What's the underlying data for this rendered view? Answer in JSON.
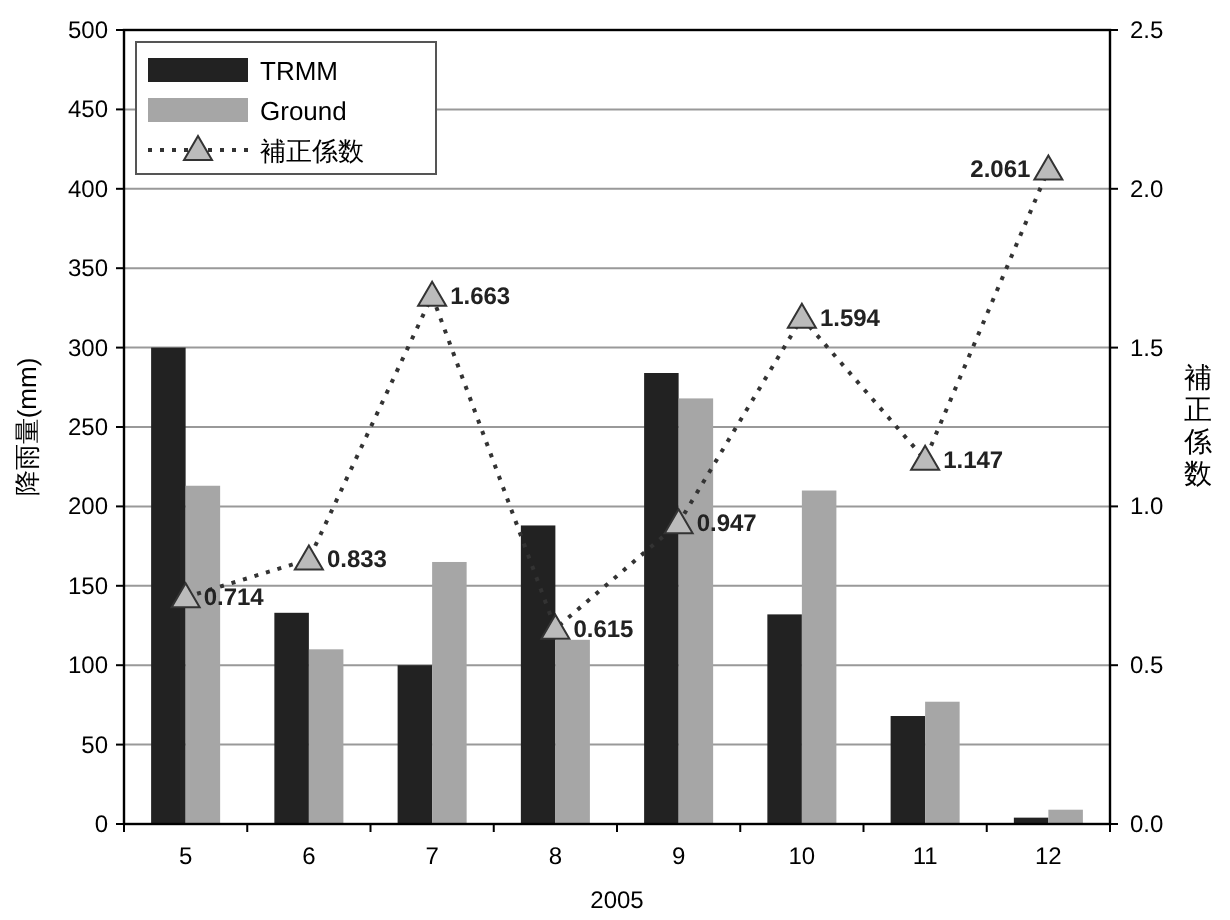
{
  "chart_data": {
    "type": "bar",
    "xlabel": "2005",
    "ylabel": "降雨量(mm)",
    "y2label": "補正係数",
    "categories": [
      "5",
      "6",
      "7",
      "8",
      "9",
      "10",
      "11",
      "12"
    ],
    "series": [
      {
        "name": "TRMM",
        "color": "#222222",
        "values": [
          300,
          133,
          100,
          188,
          284,
          132,
          68,
          4
        ]
      },
      {
        "name": "Ground",
        "color": "#a6a6a6",
        "values": [
          213,
          110,
          165,
          116,
          268,
          210,
          77,
          9
        ]
      },
      {
        "name": "補正係数",
        "type": "line",
        "axis": "y2",
        "color": "#333333",
        "marker": "triangle",
        "line_style": "dotted",
        "values": [
          0.714,
          0.833,
          1.663,
          0.615,
          0.947,
          1.594,
          1.147,
          2.061
        ],
        "value_labels": [
          "0.714",
          "0.833",
          "1.663",
          "0.615",
          "0.947",
          "1.594",
          "1.147",
          "2.061"
        ]
      }
    ],
    "ylim": [
      0,
      500
    ],
    "yticks": [
      0,
      50,
      100,
      150,
      200,
      250,
      300,
      350,
      400,
      450,
      500
    ],
    "y2lim": [
      0,
      2.5
    ],
    "y2ticks": [
      {
        "value": 0,
        "label": "0.0"
      },
      {
        "value": 0.5,
        "label": "0.5"
      },
      {
        "value": 1,
        "label": "1.0"
      },
      {
        "value": 1.5,
        "label": "1.5"
      },
      {
        "value": 2,
        "label": "2.0"
      },
      {
        "value": 2.5,
        "label": "2.5"
      }
    ],
    "grid": "y",
    "legend": "top left"
  }
}
